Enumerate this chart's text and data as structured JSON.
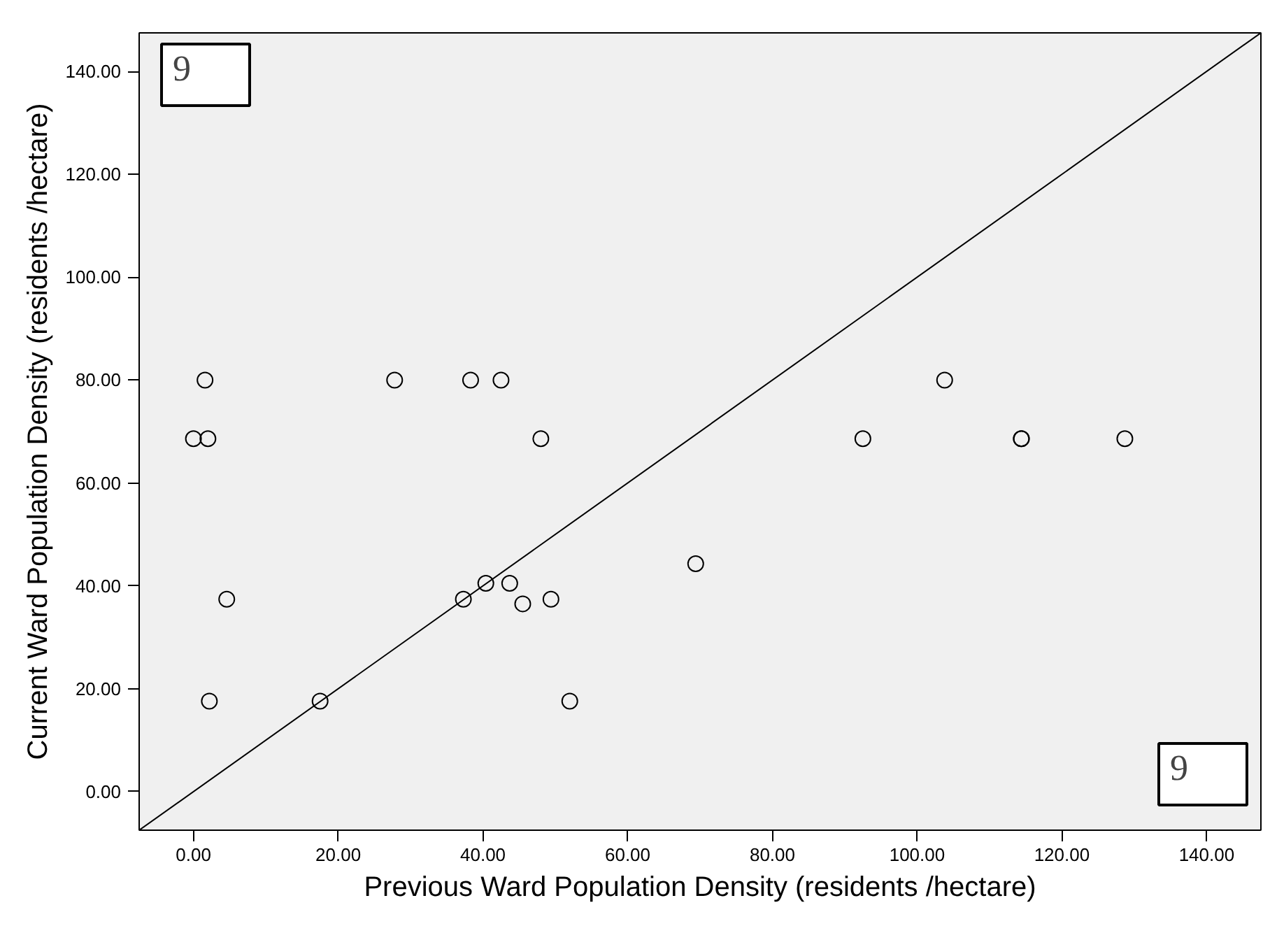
{
  "chart_data": {
    "type": "scatter",
    "xlabel": "Previous Ward Population Density (residents /hectare)",
    "ylabel": "Current Ward Population Density (residents /hectare)",
    "annotations": [
      "9",
      "9"
    ],
    "series": [
      {
        "color": "#000000",
        "marker": "circle",
        "x": [
          0,
          1.6,
          2.0,
          4.6,
          2.2,
          17.5,
          27.8,
          38.3,
          42.5,
          48.0,
          37.3,
          40.4,
          43.7,
          45.5,
          49.4,
          52.0,
          69.4,
          92.5,
          103.8,
          114.4,
          114.4,
          128.7
        ],
        "values": [
          68.6,
          80,
          68.6,
          37.4,
          17.6,
          17.6,
          80,
          80,
          80,
          68.6,
          37.4,
          40.5,
          40.5,
          36.5,
          37.4,
          17.6,
          44.3,
          68.6,
          80,
          68.6,
          68.6,
          68.6
        ]
      },
      {
        "type": "line",
        "color": "#000000",
        "x": [
          -7.5,
          147.5
        ],
        "values": [
          -7.5,
          147.5
        ]
      }
    ],
    "xlim": [
      -7.5,
      147.5
    ],
    "ylim": [
      -7.5,
      147.5
    ],
    "xticks": [
      {
        "value": 0,
        "label": "0.00"
      },
      {
        "value": 20,
        "label": "20.00"
      },
      {
        "value": 40,
        "label": "40.00"
      },
      {
        "value": 60,
        "label": "60.00"
      },
      {
        "value": 80,
        "label": "80.00"
      },
      {
        "value": 100,
        "label": "100.00"
      },
      {
        "value": 120,
        "label": "120.00"
      },
      {
        "value": 140,
        "label": "140.00"
      }
    ],
    "yticks": [
      {
        "value": 0,
        "label": "0.00"
      },
      {
        "value": 20,
        "label": "20.00"
      },
      {
        "value": 40,
        "label": "40.00"
      },
      {
        "value": 60,
        "label": "60.00"
      },
      {
        "value": 80,
        "label": "80.00"
      },
      {
        "value": 100,
        "label": "100.00"
      },
      {
        "value": 120,
        "label": "120.00"
      },
      {
        "value": 140,
        "label": "140.00"
      }
    ],
    "grid": false,
    "line_style": "solid"
  }
}
